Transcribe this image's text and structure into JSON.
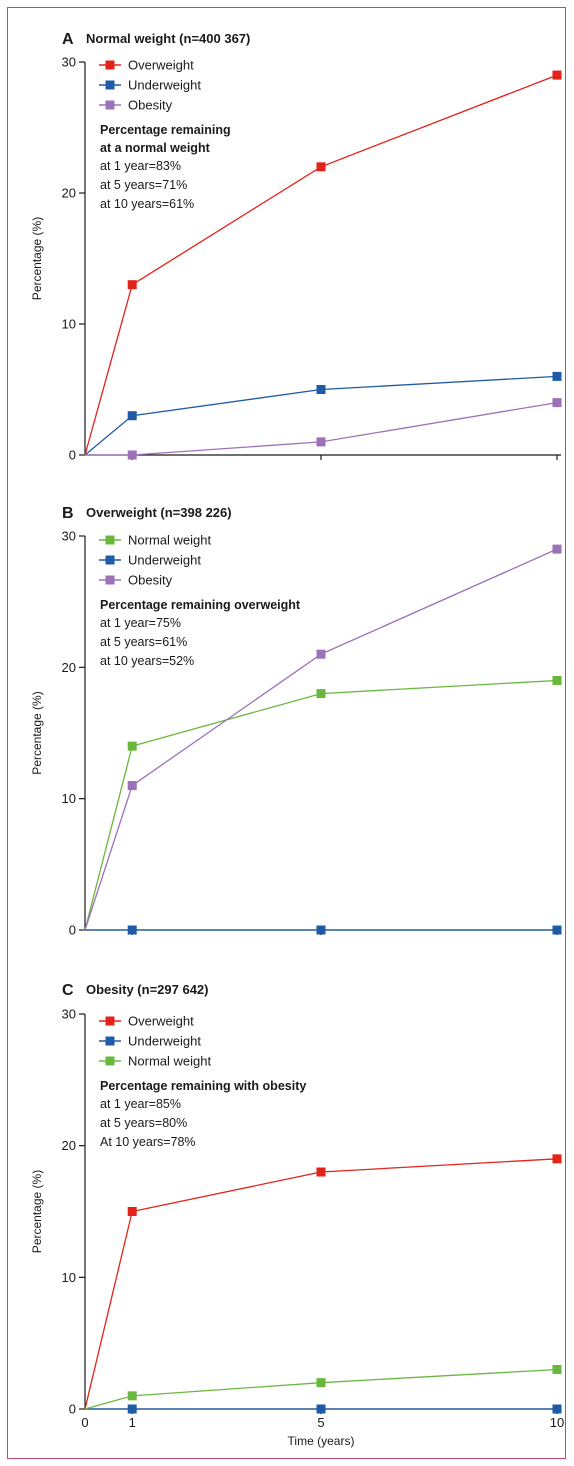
{
  "chart_data": [
    {
      "type": "line",
      "panel_letter": "A",
      "title": "Normal weight (n=400 367)",
      "xlabel": "",
      "ylabel": "Percentage (%)",
      "ylim": [
        0,
        30
      ],
      "yticks": [
        "0",
        "10",
        "20",
        "30"
      ],
      "xlim": [
        0,
        10
      ],
      "x": [
        0,
        1,
        5,
        10
      ],
      "xticks": [],
      "series": [
        {
          "name": "Overweight",
          "color": "#e2231a",
          "values": [
            0,
            13,
            22,
            29
          ]
        },
        {
          "name": "Underweight",
          "color": "#1f5aa6",
          "values": [
            0,
            3,
            5,
            6
          ]
        },
        {
          "name": "Obesity",
          "color": "#9b72b8",
          "values": [
            0,
            0,
            1,
            4
          ]
        }
      ],
      "annotation": {
        "heading": [
          "Percentage remaining",
          "at a normal weight"
        ],
        "lines": [
          "at 1 year=83%",
          "at 5 years=71%",
          "at 10 years=61%"
        ]
      }
    },
    {
      "type": "line",
      "panel_letter": "B",
      "title": "Overweight (n=398 226)",
      "xlabel": "",
      "ylabel": "Percentage (%)",
      "ylim": [
        0,
        30
      ],
      "yticks": [
        "0",
        "10",
        "20",
        "30"
      ],
      "xlim": [
        0,
        10
      ],
      "x": [
        0,
        1,
        5,
        10
      ],
      "xticks": [],
      "series": [
        {
          "name": "Normal weight",
          "color": "#6ab73e",
          "values": [
            0,
            14,
            18,
            19
          ]
        },
        {
          "name": "Underweight",
          "color": "#1f5aa6",
          "values": [
            0,
            0,
            0,
            0
          ]
        },
        {
          "name": "Obesity",
          "color": "#9b72b8",
          "values": [
            0,
            11,
            21,
            29
          ]
        }
      ],
      "annotation": {
        "heading": [
          "Percentage remaining overweight"
        ],
        "lines": [
          "at 1 year=75%",
          "at 5 years=61%",
          "at 10 years=52%"
        ]
      }
    },
    {
      "type": "line",
      "panel_letter": "C",
      "title": "Obesity (n=297 642)",
      "xlabel": "Time (years)",
      "ylabel": "Percentage (%)",
      "ylim": [
        0,
        30
      ],
      "yticks": [
        "0",
        "10",
        "20",
        "30"
      ],
      "xlim": [
        0,
        10
      ],
      "x": [
        0,
        1,
        5,
        10
      ],
      "xticks": [
        "0",
        "1",
        "5",
        "10"
      ],
      "series": [
        {
          "name": "Overweight",
          "color": "#e2231a",
          "values": [
            0,
            15,
            18,
            19
          ]
        },
        {
          "name": "Underweight",
          "color": "#1f5aa6",
          "values": [
            0,
            0,
            0,
            0
          ]
        },
        {
          "name": "Normal weight",
          "color": "#6ab73e",
          "values": [
            0,
            1,
            2,
            3
          ]
        }
      ],
      "annotation": {
        "heading": [
          "Percentage remaining with obesity"
        ],
        "lines": [
          "at 1 year=85%",
          "at 5 years=80%",
          "At 10 years=78%"
        ]
      }
    }
  ]
}
